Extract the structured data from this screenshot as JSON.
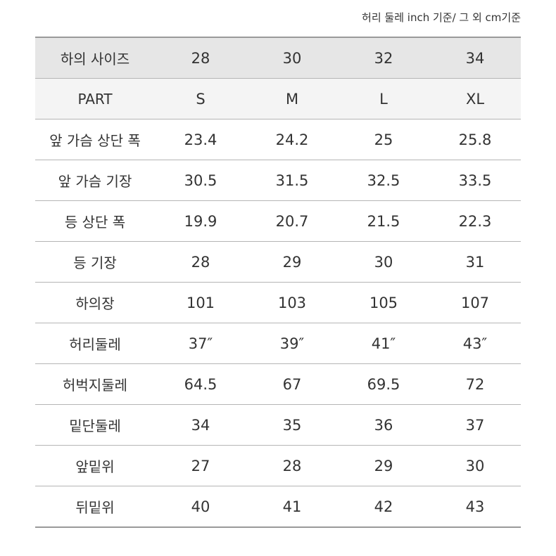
{
  "note": "허리 둘레 inch 기준/ 그 외 cm기준",
  "table": {
    "header": [
      "하의 사이즈",
      "28",
      "30",
      "32",
      "34"
    ],
    "subheader": [
      "PART",
      "S",
      "M",
      "L",
      "XL"
    ],
    "rows": [
      [
        "앞 가슴 상단 폭",
        "23.4",
        "24.2",
        "25",
        "25.8"
      ],
      [
        "앞 가슴 기장",
        "30.5",
        "31.5",
        "32.5",
        "33.5"
      ],
      [
        "등 상단 폭",
        "19.9",
        "20.7",
        "21.5",
        "22.3"
      ],
      [
        "등 기장",
        "28",
        "29",
        "30",
        "31"
      ],
      [
        "하의장",
        "101",
        "103",
        "105",
        "107"
      ],
      [
        "허리둘레",
        "37″",
        "39″",
        "41″",
        "43″"
      ],
      [
        "허벅지둘레",
        "64.5",
        "67",
        "69.5",
        "72"
      ],
      [
        "밑단둘레",
        "34",
        "35",
        "36",
        "37"
      ],
      [
        "앞밑위",
        "27",
        "28",
        "29",
        "30"
      ],
      [
        "뒤밑위",
        "40",
        "41",
        "42",
        "43"
      ]
    ]
  }
}
